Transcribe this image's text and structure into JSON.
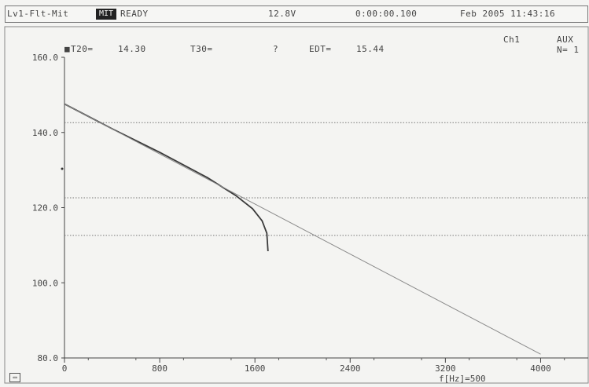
{
  "status_bar": {
    "mode": "Lv1-Flt-Mit",
    "badge": "MIT",
    "state": "READY",
    "voltage": "12.8V",
    "elapsed": "0:00:00.100",
    "datetime": "Feb 2005 11:43:16"
  },
  "header": {
    "t20_label": "T20=",
    "t20_value": "14.30",
    "t30_label": "T30=",
    "t30_value": "?",
    "edt_label": "EDT=",
    "edt_value": "15.44",
    "channel": "Ch1",
    "aux_label": "AUX",
    "aux_n": "N= 1"
  },
  "chart_data": {
    "type": "line",
    "xlabel": "f[Hz]=500",
    "xlim": [
      0,
      4400
    ],
    "ylim": [
      80,
      160
    ],
    "x_ticks": [
      0,
      800,
      1600,
      2400,
      3200,
      4000
    ],
    "x_tick_labels": [
      "0",
      "800",
      "1600",
      "2400",
      "3200",
      "4000"
    ],
    "y_ticks": [
      80,
      100,
      120,
      140,
      160
    ],
    "y_tick_labels": [
      "80.0",
      "100.0",
      "120.0",
      "140.0",
      "160.0"
    ],
    "reference_levels": [
      142.6,
      122.6,
      112.6
    ],
    "series": [
      {
        "x": [
          0,
          400,
          800,
          1200,
          1440,
          1580,
          1660,
          1700,
          1710
        ],
        "y": [
          147.6,
          141.0,
          134.7,
          128.0,
          123.2,
          119.7,
          116.5,
          113.2,
          108.4
        ]
      },
      {
        "x": [
          0,
          4000
        ],
        "y": [
          147.6,
          81.0
        ]
      }
    ],
    "grid": false
  }
}
